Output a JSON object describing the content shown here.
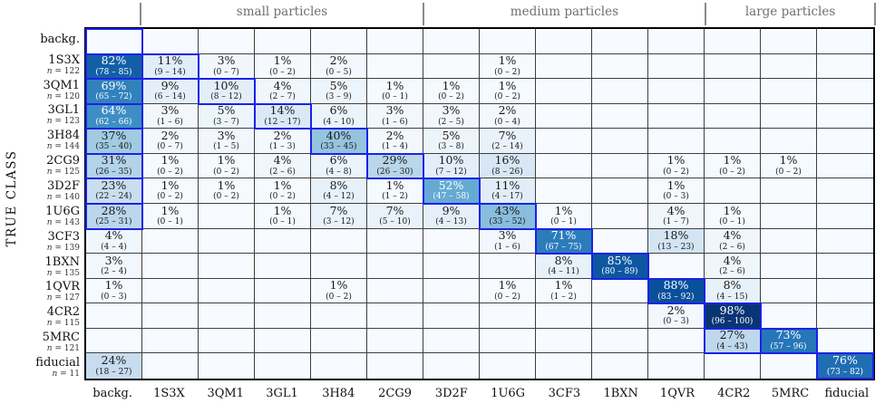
{
  "colors": {
    "cell_highlight_border": "#1a22e8",
    "grid_line": "#3f3f3f",
    "outer_border": "#000000",
    "header_text": "#6f6f6f",
    "empty_cell": "#f7fbff",
    "colormap": "Blues"
  },
  "chart_data": {
    "type": "heatmap",
    "title": "",
    "ylabel": "TRUE CLASS",
    "value_format": "percent with confidence interval",
    "columns": [
      "backg.",
      "1S3X",
      "3QM1",
      "3GL1",
      "3H84",
      "2CG9",
      "3D2F",
      "1U6G",
      "3CF3",
      "1BXN",
      "1QVR",
      "4CR2",
      "5MRC",
      "fiducial"
    ],
    "column_groups": [
      {
        "label": "small particles",
        "start": 1,
        "end": 5
      },
      {
        "label": "medium particles",
        "start": 6,
        "end": 10
      },
      {
        "label": "large particles",
        "start": 11,
        "end": 13
      }
    ],
    "rows": [
      {
        "label": "backg.",
        "n": null,
        "cells": [
          {
            "col": 0,
            "highlight": true
          }
        ]
      },
      {
        "label": "1S3X",
        "n": 122,
        "cells": [
          {
            "col": 0,
            "pct": 82,
            "lo": 78,
            "hi": 85,
            "highlight": true
          },
          {
            "col": 1,
            "pct": 11,
            "lo": 9,
            "hi": 14,
            "highlight": true
          },
          {
            "col": 2,
            "pct": 3,
            "lo": 0,
            "hi": 7
          },
          {
            "col": 3,
            "pct": 1,
            "lo": 0,
            "hi": 2
          },
          {
            "col": 4,
            "pct": 2,
            "lo": 0,
            "hi": 5
          },
          {
            "col": 7,
            "pct": 1,
            "lo": 0,
            "hi": 2
          }
        ]
      },
      {
        "label": "3QM1",
        "n": 120,
        "cells": [
          {
            "col": 0,
            "pct": 69,
            "lo": 65,
            "hi": 72,
            "highlight": true
          },
          {
            "col": 1,
            "pct": 9,
            "lo": 6,
            "hi": 14
          },
          {
            "col": 2,
            "pct": 10,
            "lo": 8,
            "hi": 12,
            "highlight": true
          },
          {
            "col": 3,
            "pct": 4,
            "lo": 2,
            "hi": 7
          },
          {
            "col": 4,
            "pct": 5,
            "lo": 3,
            "hi": 9
          },
          {
            "col": 5,
            "pct": 1,
            "lo": 0,
            "hi": 1
          },
          {
            "col": 6,
            "pct": 1,
            "lo": 0,
            "hi": 2
          },
          {
            "col": 7,
            "pct": 1,
            "lo": 0,
            "hi": 2
          }
        ]
      },
      {
        "label": "3GL1",
        "n": 123,
        "cells": [
          {
            "col": 0,
            "pct": 64,
            "lo": 62,
            "hi": 66,
            "highlight": true
          },
          {
            "col": 1,
            "pct": 3,
            "lo": 1,
            "hi": 6
          },
          {
            "col": 2,
            "pct": 5,
            "lo": 3,
            "hi": 7
          },
          {
            "col": 3,
            "pct": 14,
            "lo": 12,
            "hi": 17,
            "highlight": true
          },
          {
            "col": 4,
            "pct": 6,
            "lo": 4,
            "hi": 10
          },
          {
            "col": 5,
            "pct": 3,
            "lo": 1,
            "hi": 6
          },
          {
            "col": 6,
            "pct": 3,
            "lo": 2,
            "hi": 5
          },
          {
            "col": 7,
            "pct": 2,
            "lo": 0,
            "hi": 4
          }
        ]
      },
      {
        "label": "3H84",
        "n": 144,
        "cells": [
          {
            "col": 0,
            "pct": 37,
            "lo": 35,
            "hi": 40,
            "highlight": true
          },
          {
            "col": 1,
            "pct": 2,
            "lo": 0,
            "hi": 7
          },
          {
            "col": 2,
            "pct": 3,
            "lo": 1,
            "hi": 5
          },
          {
            "col": 3,
            "pct": 2,
            "lo": 1,
            "hi": 3
          },
          {
            "col": 4,
            "pct": 40,
            "lo": 33,
            "hi": 45,
            "highlight": true
          },
          {
            "col": 5,
            "pct": 2,
            "lo": 1,
            "hi": 4
          },
          {
            "col": 6,
            "pct": 5,
            "lo": 3,
            "hi": 8
          },
          {
            "col": 7,
            "pct": 7,
            "lo": 2,
            "hi": 14
          }
        ]
      },
      {
        "label": "2CG9",
        "n": 125,
        "cells": [
          {
            "col": 0,
            "pct": 31,
            "lo": 26,
            "hi": 35,
            "highlight": true
          },
          {
            "col": 1,
            "pct": 1,
            "lo": 0,
            "hi": 2
          },
          {
            "col": 2,
            "pct": 1,
            "lo": 0,
            "hi": 2
          },
          {
            "col": 3,
            "pct": 4,
            "lo": 2,
            "hi": 6
          },
          {
            "col": 4,
            "pct": 6,
            "lo": 4,
            "hi": 8
          },
          {
            "col": 5,
            "pct": 29,
            "lo": 26,
            "hi": 30,
            "highlight": true
          },
          {
            "col": 6,
            "pct": 10,
            "lo": 7,
            "hi": 12
          },
          {
            "col": 7,
            "pct": 16,
            "lo": 8,
            "hi": 26
          },
          {
            "col": 10,
            "pct": 1,
            "lo": 0,
            "hi": 2
          },
          {
            "col": 11,
            "pct": 1,
            "lo": 0,
            "hi": 2
          },
          {
            "col": 12,
            "pct": 1,
            "lo": 0,
            "hi": 2
          }
        ]
      },
      {
        "label": "3D2F",
        "n": 140,
        "cells": [
          {
            "col": 0,
            "pct": 23,
            "lo": 22,
            "hi": 24,
            "highlight": true
          },
          {
            "col": 1,
            "pct": 1,
            "lo": 0,
            "hi": 2
          },
          {
            "col": 2,
            "pct": 1,
            "lo": 0,
            "hi": 2
          },
          {
            "col": 3,
            "pct": 1,
            "lo": 0,
            "hi": 2
          },
          {
            "col": 4,
            "pct": 8,
            "lo": 4,
            "hi": 12
          },
          {
            "col": 5,
            "pct": 1,
            "lo": 1,
            "hi": 2
          },
          {
            "col": 6,
            "pct": 52,
            "lo": 47,
            "hi": 58,
            "highlight": true
          },
          {
            "col": 7,
            "pct": 11,
            "lo": 4,
            "hi": 17
          },
          {
            "col": 10,
            "pct": 1,
            "lo": 0,
            "hi": 3
          }
        ]
      },
      {
        "label": "1U6G",
        "n": 143,
        "cells": [
          {
            "col": 0,
            "pct": 28,
            "lo": 25,
            "hi": 31,
            "highlight": true
          },
          {
            "col": 1,
            "pct": 1,
            "lo": 0,
            "hi": 1
          },
          {
            "col": 3,
            "pct": 1,
            "lo": 0,
            "hi": 1
          },
          {
            "col": 4,
            "pct": 7,
            "lo": 3,
            "hi": 12
          },
          {
            "col": 5,
            "pct": 7,
            "lo": 5,
            "hi": 10
          },
          {
            "col": 6,
            "pct": 9,
            "lo": 4,
            "hi": 13
          },
          {
            "col": 7,
            "pct": 43,
            "lo": 33,
            "hi": 52,
            "highlight": true
          },
          {
            "col": 8,
            "pct": 1,
            "lo": 0,
            "hi": 1
          },
          {
            "col": 10,
            "pct": 4,
            "lo": 1,
            "hi": 7
          },
          {
            "col": 11,
            "pct": 1,
            "lo": 0,
            "hi": 1
          }
        ]
      },
      {
        "label": "3CF3",
        "n": 139,
        "cells": [
          {
            "col": 0,
            "pct": 4,
            "lo": 4,
            "hi": 4
          },
          {
            "col": 7,
            "pct": 3,
            "lo": 1,
            "hi": 6
          },
          {
            "col": 8,
            "pct": 71,
            "lo": 67,
            "hi": 75,
            "highlight": true
          },
          {
            "col": 10,
            "pct": 18,
            "lo": 13,
            "hi": 23
          },
          {
            "col": 11,
            "pct": 4,
            "lo": 2,
            "hi": 6
          }
        ]
      },
      {
        "label": "1BXN",
        "n": 135,
        "cells": [
          {
            "col": 0,
            "pct": 3,
            "lo": 2,
            "hi": 4
          },
          {
            "col": 8,
            "pct": 8,
            "lo": 4,
            "hi": 11
          },
          {
            "col": 9,
            "pct": 85,
            "lo": 80,
            "hi": 89,
            "highlight": true
          },
          {
            "col": 11,
            "pct": 4,
            "lo": 2,
            "hi": 6
          }
        ]
      },
      {
        "label": "1QVR",
        "n": 127,
        "cells": [
          {
            "col": 0,
            "pct": 1,
            "lo": 0,
            "hi": 3
          },
          {
            "col": 4,
            "pct": 1,
            "lo": 0,
            "hi": 2
          },
          {
            "col": 7,
            "pct": 1,
            "lo": 0,
            "hi": 2
          },
          {
            "col": 8,
            "pct": 1,
            "lo": 1,
            "hi": 2
          },
          {
            "col": 10,
            "pct": 88,
            "lo": 83,
            "hi": 92,
            "highlight": true
          },
          {
            "col": 11,
            "pct": 8,
            "lo": 4,
            "hi": 15
          }
        ]
      },
      {
        "label": "4CR2",
        "n": 115,
        "cells": [
          {
            "col": 10,
            "pct": 2,
            "lo": 0,
            "hi": 3
          },
          {
            "col": 11,
            "pct": 98,
            "lo": 96,
            "hi": 100,
            "highlight": true
          }
        ]
      },
      {
        "label": "5MRC",
        "n": 121,
        "cells": [
          {
            "col": 11,
            "pct": 27,
            "lo": 4,
            "hi": 43,
            "highlight": true
          },
          {
            "col": 12,
            "pct": 73,
            "lo": 57,
            "hi": 96,
            "highlight": true
          }
        ]
      },
      {
        "label": "fiducial",
        "n": 11,
        "cells": [
          {
            "col": 0,
            "pct": 24,
            "lo": 18,
            "hi": 27
          },
          {
            "col": 13,
            "pct": 76,
            "lo": 73,
            "hi": 82,
            "highlight": true
          }
        ]
      }
    ]
  }
}
